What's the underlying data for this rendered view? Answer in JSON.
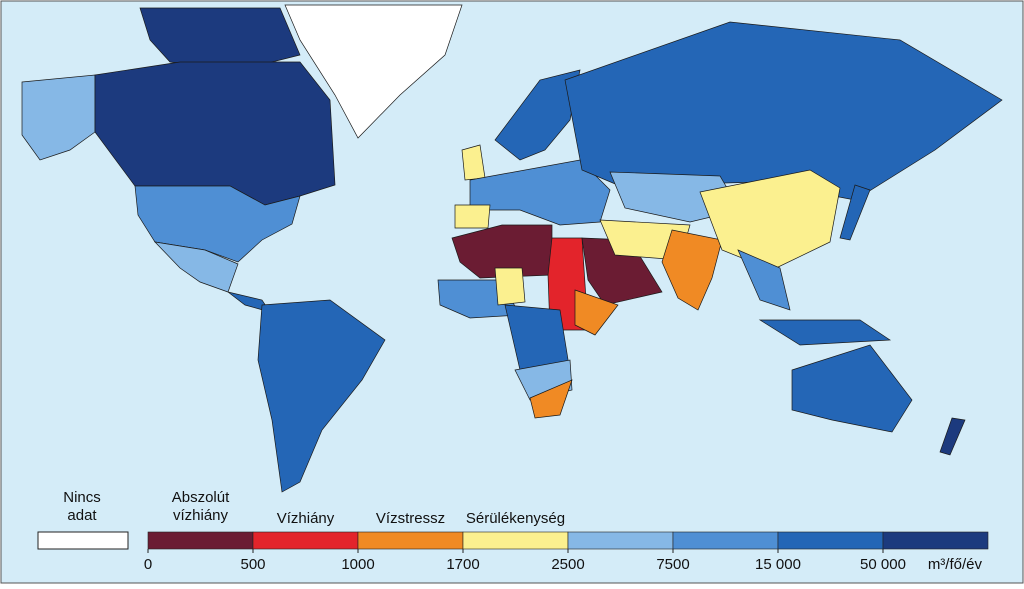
{
  "legend": {
    "no_data": "Nincs adat",
    "no_data_color": "#ffffff",
    "categories": [
      "Abszolút vízhiány",
      "Vízhiány",
      "Vízstressz",
      "Sérülékenység"
    ],
    "colors": [
      "#6b1c33",
      "#e3242b",
      "#f08a24",
      "#fbf08f",
      "#86b8e6",
      "#4f8fd4",
      "#2466b6",
      "#1c3a7e"
    ],
    "ticks": [
      0,
      500,
      1000,
      1700,
      2500,
      7500,
      {
        "value": 15000,
        "label": "15 000"
      },
      {
        "value": 50000,
        "label": "50 000"
      }
    ],
    "unit": "m³/fő/év"
  }
}
